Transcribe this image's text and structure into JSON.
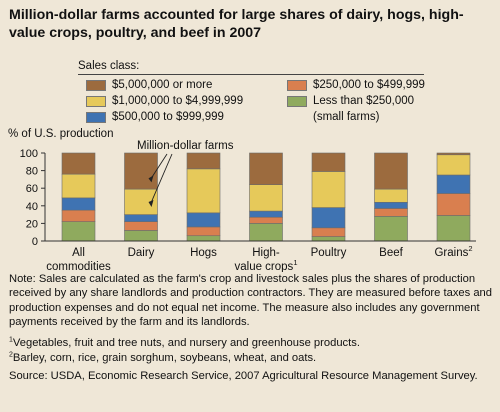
{
  "title": "Million-dollar farms accounted for large shares of dairy, hogs, high-value crops, poultry, and beef in 2007",
  "legend": {
    "heading": "Sales class:",
    "items": [
      {
        "label": "$5,000,000 or more",
        "color": "#9c6b3e"
      },
      {
        "label": "$1,000,000 to $4,999,999",
        "color": "#e6c95a"
      },
      {
        "label": "$500,000 to $999,999",
        "color": "#3f73b2"
      },
      {
        "label": "$250,000 to $499,999",
        "color": "#d97f4f"
      },
      {
        "label": "Less than $250,000",
        "color": "#8faa5e",
        "note": "(small farms)"
      }
    ]
  },
  "chart_data": {
    "type": "bar",
    "stacked": true,
    "ylabel": "% of U.S. production",
    "ylim": [
      0,
      100
    ],
    "yticks": [
      0,
      20,
      40,
      60,
      80,
      100
    ],
    "annotation": "Million-dollar farms",
    "categories": [
      {
        "lines": [
          "All",
          "commodities"
        ],
        "sup": ""
      },
      {
        "lines": [
          "Dairy"
        ],
        "sup": ""
      },
      {
        "lines": [
          "Hogs"
        ],
        "sup": ""
      },
      {
        "lines": [
          "High-",
          "value crops"
        ],
        "sup": "1"
      },
      {
        "lines": [
          "Poultry"
        ],
        "sup": ""
      },
      {
        "lines": [
          "Beef"
        ],
        "sup": ""
      },
      {
        "lines": [
          "Grains"
        ],
        "sup": "2"
      }
    ],
    "series": [
      {
        "name": "Less than $250,000",
        "color": "#8faa5e",
        "values": [
          22,
          12,
          6,
          20,
          5,
          28,
          29
        ]
      },
      {
        "name": "$250,000 to $499,999",
        "color": "#d97f4f",
        "values": [
          13,
          10,
          10,
          7,
          10,
          9,
          25
        ]
      },
      {
        "name": "$500,000 to $999,999",
        "color": "#3f73b2",
        "values": [
          14,
          8,
          16,
          7,
          23,
          7,
          21
        ]
      },
      {
        "name": "$1,000,000 to $4,999,999",
        "color": "#e6c95a",
        "values": [
          27,
          29,
          50,
          30,
          41,
          15,
          23
        ]
      },
      {
        "name": "$5,000,000 or more",
        "color": "#9c6b3e",
        "values": [
          24,
          41,
          18,
          36,
          21,
          41,
          2
        ]
      }
    ]
  },
  "notes": {
    "main": "Note: Sales are calculated as the farm's crop and livestock sales plus the shares of production received by any share landlords and production contractors. They are measured before taxes and production expenses and do not equal net income. The measure also includes any government payments received by the farm and its landlords.",
    "fn1_mark": "1",
    "fn1": "Vegetables, fruit and tree nuts, and nursery and greenhouse products.",
    "fn2_mark": "2",
    "fn2": "Barley, corn, rice, grain sorghum, soybeans, wheat, and oats.",
    "source": "Source: USDA, Economic Research Service, 2007 Agricultural Resource Management Survey."
  }
}
